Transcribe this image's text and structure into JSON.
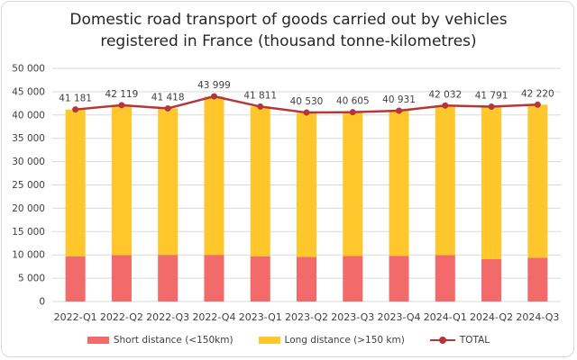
{
  "chart_data": {
    "type": "bar",
    "stacked": true,
    "title_lines": [
      "Domestic road transport of goods carried out by vehicles",
      "registered in France (thousand tonne-kilometres)"
    ],
    "categories": [
      "2022-Q1",
      "2022-Q2",
      "2022-Q3",
      "2022-Q4",
      "2023-Q1",
      "2023-Q2",
      "2023-Q3",
      "2023-Q4",
      "2024-Q1",
      "2024-Q2",
      "2024-Q3"
    ],
    "series": [
      {
        "name": "Short distance (<150km)",
        "kind": "bar",
        "color": "#f36a6a",
        "values": [
          9700,
          9950,
          10000,
          10000,
          9700,
          9550,
          9750,
          9800,
          9950,
          9100,
          9400
        ]
      },
      {
        "name": "Long distance (>150 km)",
        "kind": "bar",
        "color": "#ffc72c",
        "values": [
          31481,
          32169,
          31418,
          33999,
          32111,
          30980,
          30855,
          31131,
          32082,
          32691,
          32820
        ]
      },
      {
        "name": "TOTAL",
        "kind": "line",
        "color": "#b5363a",
        "values": [
          41181,
          42119,
          41418,
          43999,
          41811,
          40530,
          40605,
          40931,
          42032,
          41791,
          42220
        ]
      }
    ],
    "data_labels": [
      "41 181",
      "42 119",
      "41 418",
      "43 999",
      "41 811",
      "40 530",
      "40 605",
      "40 931",
      "42 032",
      "41 791",
      "42 220"
    ],
    "ylim": [
      0,
      50000
    ],
    "yticks": [
      0,
      5000,
      10000,
      15000,
      20000,
      25000,
      30000,
      35000,
      40000,
      45000,
      50000
    ],
    "ytick_labels": [
      "0",
      "5 000",
      "10 000",
      "15 000",
      "20 000",
      "25 000",
      "30 000",
      "35 000",
      "40 000",
      "45 000",
      "50 000"
    ],
    "grid": true,
    "legend_position": "bottom"
  }
}
